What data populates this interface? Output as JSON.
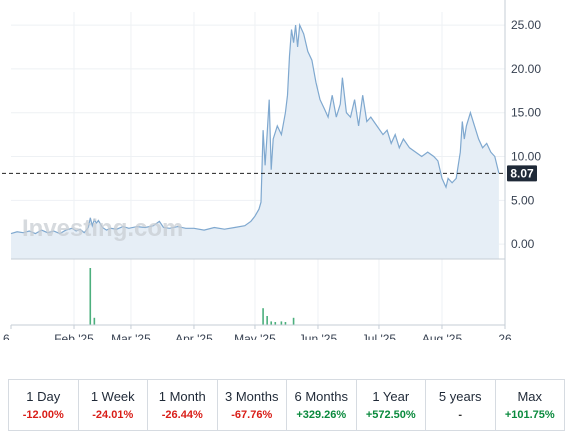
{
  "chart_data": {
    "type": "area",
    "title": "",
    "xlabel": "",
    "ylabel": "",
    "ylim": [
      -1.7,
      26.5
    ],
    "y_ticks": [
      "25.00",
      "20.00",
      "15.00",
      "10.00",
      "5.00",
      "0.00"
    ],
    "y_tick_values": [
      25,
      20,
      15,
      10,
      5,
      0
    ],
    "x_ticks": [
      "6",
      "Feb '25",
      "Mar '25",
      "Apr '25",
      "May '25",
      "Jun '25",
      "Jul '25",
      "Aug '25",
      "26"
    ],
    "x_tick_days": [
      0,
      31,
      59,
      90,
      120,
      151,
      181,
      212,
      243
    ],
    "current_price": 8.07,
    "current_price_label": "8.07",
    "watermark": "Investing.com",
    "line_color": "#7fa8cf",
    "fill_color": "#e6eef6",
    "series": [
      {
        "points": [
          [
            0,
            1.2
          ],
          [
            3,
            1.4
          ],
          [
            6,
            1.3
          ],
          [
            9,
            1.5
          ],
          [
            12,
            1.2
          ],
          [
            15,
            1.6
          ],
          [
            18,
            1.3
          ],
          [
            21,
            1.5
          ],
          [
            24,
            1.2
          ],
          [
            27,
            1.6
          ],
          [
            30,
            1.8
          ],
          [
            32,
            1.5
          ],
          [
            34,
            1.7
          ],
          [
            36,
            1.3
          ],
          [
            38,
            1.9
          ],
          [
            39,
            3.0
          ],
          [
            40,
            2.1
          ],
          [
            41,
            2.8
          ],
          [
            42,
            2.4
          ],
          [
            43,
            2.7
          ],
          [
            45,
            1.9
          ],
          [
            47,
            1.6
          ],
          [
            49,
            1.8
          ],
          [
            52,
            1.7
          ],
          [
            55,
            2.0
          ],
          [
            58,
            1.8
          ],
          [
            62,
            2.0
          ],
          [
            66,
            1.9
          ],
          [
            70,
            2.1
          ],
          [
            73,
            2.6
          ],
          [
            75,
            1.9
          ],
          [
            78,
            1.8
          ],
          [
            82,
            2.0
          ],
          [
            86,
            1.8
          ],
          [
            90,
            1.8
          ],
          [
            95,
            1.6
          ],
          [
            100,
            1.9
          ],
          [
            105,
            1.7
          ],
          [
            110,
            1.9
          ],
          [
            115,
            2.1
          ],
          [
            118,
            2.6
          ],
          [
            120,
            3.2
          ],
          [
            122,
            4.0
          ],
          [
            123,
            4.8
          ],
          [
            124,
            13.0
          ],
          [
            125,
            9.0
          ],
          [
            126,
            12.5
          ],
          [
            127,
            16.5
          ],
          [
            128,
            8.5
          ],
          [
            129,
            12.0
          ],
          [
            131,
            13.5
          ],
          [
            133,
            12.5
          ],
          [
            135,
            15.0
          ],
          [
            136,
            17.0
          ],
          [
            137,
            21.5
          ],
          [
            138,
            24.5
          ],
          [
            139,
            23.0
          ],
          [
            140,
            25.0
          ],
          [
            141,
            22.5
          ],
          [
            142,
            25.0
          ],
          [
            144,
            24.0
          ],
          [
            146,
            22.0
          ],
          [
            148,
            21.0
          ],
          [
            150,
            18.5
          ],
          [
            152,
            16.5
          ],
          [
            154,
            15.5
          ],
          [
            156,
            14.5
          ],
          [
            158,
            17.0
          ],
          [
            160,
            14.5
          ],
          [
            162,
            16.0
          ],
          [
            163,
            19.0
          ],
          [
            165,
            15.0
          ],
          [
            167,
            14.5
          ],
          [
            169,
            16.5
          ],
          [
            171,
            13.5
          ],
          [
            173,
            17.0
          ],
          [
            175,
            14.0
          ],
          [
            177,
            14.5
          ],
          [
            180,
            13.5
          ],
          [
            183,
            12.5
          ],
          [
            185,
            13.0
          ],
          [
            187,
            11.5
          ],
          [
            189,
            12.5
          ],
          [
            191,
            11.0
          ],
          [
            193,
            12.0
          ],
          [
            196,
            11.0
          ],
          [
            199,
            10.5
          ],
          [
            202,
            10.0
          ],
          [
            205,
            10.5
          ],
          [
            208,
            10.0
          ],
          [
            210,
            9.5
          ],
          [
            212,
            7.5
          ],
          [
            214,
            6.5
          ],
          [
            215,
            7.5
          ],
          [
            217,
            7.0
          ],
          [
            219,
            7.5
          ],
          [
            221,
            10.5
          ],
          [
            222,
            14.0
          ],
          [
            223,
            12.0
          ],
          [
            224,
            13.5
          ],
          [
            226,
            15.0
          ],
          [
            228,
            13.5
          ],
          [
            230,
            12.0
          ],
          [
            232,
            11.0
          ],
          [
            234,
            11.5
          ],
          [
            236,
            10.5
          ],
          [
            238,
            10.0
          ],
          [
            240,
            8.07
          ]
        ]
      }
    ],
    "volume": [
      [
        39,
        0.95
      ],
      [
        41,
        0.12
      ],
      [
        124,
        0.28
      ],
      [
        126,
        0.15
      ],
      [
        128,
        0.06
      ],
      [
        130,
        0.05
      ],
      [
        133,
        0.06
      ],
      [
        135,
        0.05
      ],
      [
        139,
        0.12
      ]
    ]
  },
  "performance": [
    {
      "label": "1 Day",
      "value": "-12.00%",
      "trend": "neg"
    },
    {
      "label": "1 Week",
      "value": "-24.01%",
      "trend": "neg"
    },
    {
      "label": "1 Month",
      "value": "-26.44%",
      "trend": "neg"
    },
    {
      "label": "3 Months",
      "value": "-67.76%",
      "trend": "neg"
    },
    {
      "label": "6 Months",
      "value": "+329.26%",
      "trend": "pos"
    },
    {
      "label": "1 Year",
      "value": "+572.50%",
      "trend": "pos"
    },
    {
      "label": "5 years",
      "value": "-",
      "trend": "neu"
    },
    {
      "label": "Max",
      "value": "+101.75%",
      "trend": "pos"
    }
  ]
}
